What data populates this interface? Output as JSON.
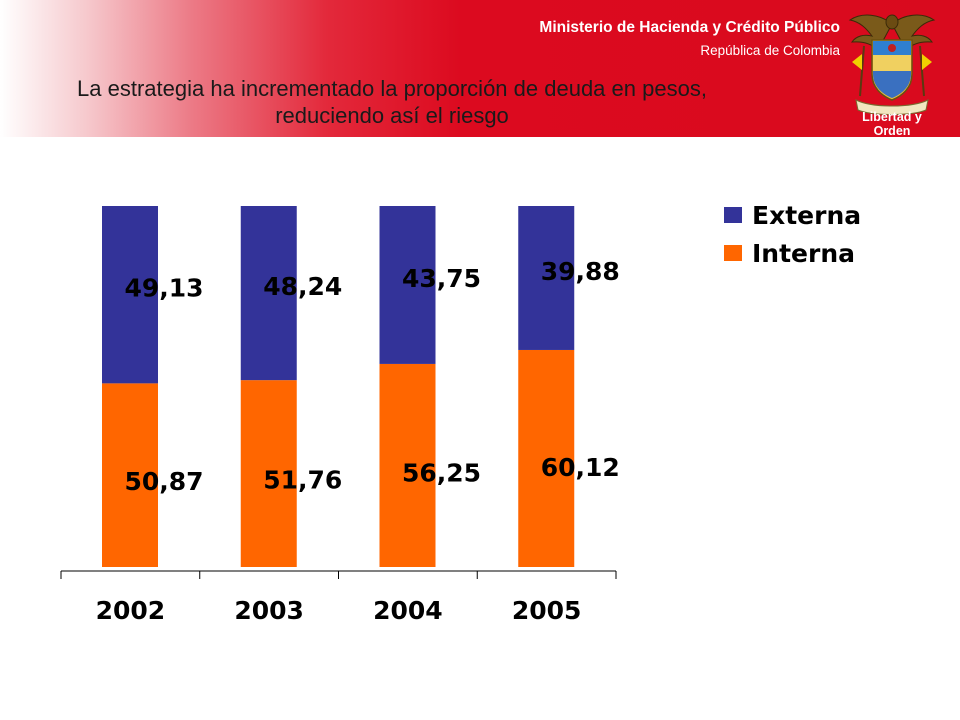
{
  "header": {
    "ministry": "Ministerio de Hacienda y Crédito Público",
    "country": "República de Colombia",
    "motto": "Libertad y Orden",
    "title_line1": "La estrategia ha incrementado la proporción de deuda en pesos,",
    "title_line2": "reduciendo así el riesgo",
    "band_color": "#d90a1e"
  },
  "chart_data": {
    "type": "bar",
    "stacked": true,
    "categories": [
      "2002",
      "2003",
      "2004",
      "2005"
    ],
    "series": [
      {
        "name": "Interna",
        "color": "#ff6600",
        "values": [
          50.87,
          51.76,
          56.25,
          60.12
        ],
        "labels": [
          "50,87",
          "51,76",
          "56,25",
          "60,12"
        ]
      },
      {
        "name": "Externa",
        "color": "#333399",
        "values": [
          49.13,
          48.24,
          43.75,
          39.88
        ],
        "labels": [
          "49,13",
          "48,24",
          "43,75",
          "39,88"
        ]
      }
    ],
    "legend_order": [
      "Externa",
      "Interna"
    ],
    "ylim": [
      0,
      100
    ],
    "grid": false,
    "legend": "top-right",
    "title": "",
    "xlabel": "",
    "ylabel": ""
  }
}
